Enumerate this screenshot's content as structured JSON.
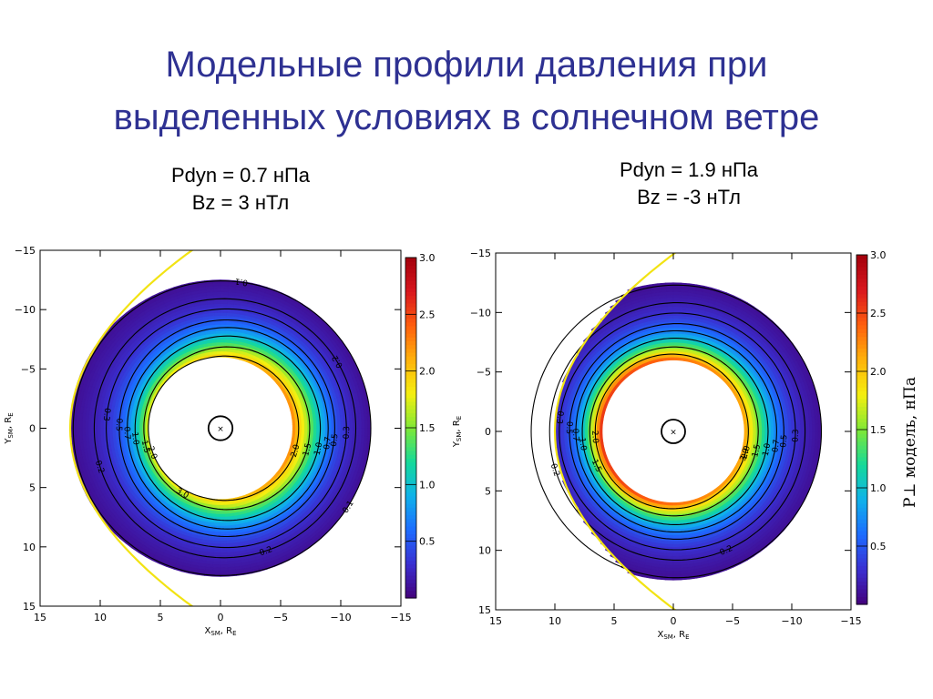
{
  "slide": {
    "title_line1": "Модельные профили давления при",
    "title_line2": "выделенных условиях в солнечном ветре"
  },
  "panels": [
    {
      "cond_line1": "Pdyn = 0.7 нПа",
      "cond_line2": "Bz = 3 нТл"
    },
    {
      "cond_line1": "Pdyn = 1.9 нПа",
      "cond_line2": "Bz = -3 нТл"
    }
  ],
  "colorbar_label": "P⊥ модель, нПа",
  "colors": {
    "title": "#2e3192",
    "earth_circle": "#000000",
    "magnetopause": "#f2e313",
    "colormap": [
      "#43007a",
      "#3a2fd0",
      "#1d6bff",
      "#0fb2ea",
      "#14d99a",
      "#7fe836",
      "#f4ef10",
      "#ffb30a",
      "#ff5f0d",
      "#d9171e",
      "#a3000c"
    ]
  },
  "chart_data": [
    {
      "type": "heatmap",
      "pdyn_npa": 0.7,
      "bz_nt": 3,
      "xlabel": "X_SM, R_E",
      "ylabel": "Y_SM, R_E",
      "xlim": [
        15,
        -15
      ],
      "ylim": [
        -15,
        15
      ],
      "xticks": [
        15,
        10,
        5,
        0,
        -5,
        -10,
        -15
      ],
      "yticks": [
        -15,
        -10,
        -5,
        0,
        5,
        10,
        15
      ],
      "colorbar": {
        "range": [
          0,
          3.0
        ],
        "ticks": [
          0.5,
          1.0,
          1.5,
          2.0,
          2.5,
          3.0
        ]
      },
      "inner_boundary_re": 6.0,
      "outer_boundary_re": 12.5,
      "magnetopause_subsolar_re": 12.5,
      "pressure_profile": {
        "r": [
          6.0,
          6.5,
          7.0,
          7.5,
          8.0,
          8.5,
          9.0,
          9.5,
          10.0,
          11.0,
          12.0,
          12.5
        ],
        "p_day": [
          1.8,
          1.4,
          1.05,
          0.8,
          0.6,
          0.48,
          0.38,
          0.3,
          0.24,
          0.16,
          0.11,
          0.09
        ],
        "p_night": [
          2.3,
          2.0,
          1.75,
          1.45,
          1.15,
          0.9,
          0.68,
          0.5,
          0.37,
          0.22,
          0.14,
          0.1
        ]
      },
      "contours": [
        {
          "level": "0.1"
        },
        {
          "level": "0.2"
        },
        {
          "level": "0.3"
        },
        {
          "level": "0.5"
        },
        {
          "level": "0.7"
        },
        {
          "level": "1.0"
        },
        {
          "level": "1.5"
        },
        {
          "level": "2.0"
        }
      ],
      "contour_label_angles": [
        {
          "level": "0.1",
          "angles": [
            148,
            262
          ]
        },
        {
          "level": "0.2",
          "angles": [
            210,
            110,
            18
          ]
        },
        {
          "level": "0.3",
          "angles": [
            178,
            353
          ]
        },
        {
          "level": "0.5",
          "angles": [
            174,
            358
          ]
        },
        {
          "level": "0.7",
          "angles": [
            172,
            3
          ]
        },
        {
          "level": "1.0",
          "angles": [
            168,
            7
          ]
        },
        {
          "level": "1.5",
          "angles": [
            166,
            14
          ]
        },
        {
          "level": "2.0",
          "angles": [
            163,
            20
          ]
        },
        {
          "level": "3.0",
          "angles": [
            60
          ]
        }
      ]
    },
    {
      "type": "heatmap",
      "pdyn_npa": 1.9,
      "bz_nt": -3,
      "xlabel": "X_SM, R_E",
      "ylabel": "Y_SM, R_E",
      "xlim": [
        15,
        -15
      ],
      "ylim": [
        -15,
        15
      ],
      "xticks": [
        15,
        10,
        5,
        0,
        -5,
        -10,
        -15
      ],
      "yticks": [
        -15,
        -10,
        -5,
        0,
        5,
        10,
        15
      ],
      "colorbar": {
        "range": [
          0,
          3.0
        ],
        "ticks": [
          0.5,
          1.0,
          1.5,
          2.0,
          2.5,
          3.0
        ]
      },
      "inner_boundary_re": 6.0,
      "outer_boundary_re": 12.5,
      "magnetopause_subsolar_re": 10.0,
      "pressure_profile": {
        "r": [
          6.0,
          6.5,
          7.0,
          7.5,
          8.0,
          8.5,
          9.0,
          9.5,
          10.0,
          11.0,
          12.0,
          12.5
        ],
        "p_day": [
          2.7,
          2.1,
          1.55,
          1.12,
          0.8,
          0.58,
          0.43,
          0.32,
          0.24,
          0.15,
          0.1,
          0.08
        ],
        "p_night": [
          2.2,
          1.9,
          1.6,
          1.3,
          1.0,
          0.78,
          0.6,
          0.45,
          0.34,
          0.21,
          0.13,
          0.1
        ]
      },
      "contours": [
        {
          "level": "0.1"
        },
        {
          "level": "0.2"
        },
        {
          "level": "0.3"
        },
        {
          "level": "0.5"
        },
        {
          "level": "0.7"
        },
        {
          "level": "1.0"
        },
        {
          "level": "1.5"
        },
        {
          "level": "2.0"
        }
      ],
      "contour_label_angles": [
        {
          "level": "0.2",
          "angles": [
            114,
            18
          ]
        },
        {
          "level": "0.3",
          "angles": [
            178,
            353
          ]
        },
        {
          "level": "0.5",
          "angles": [
            175,
            358
          ]
        },
        {
          "level": "0.7",
          "angles": [
            172,
            2
          ]
        },
        {
          "level": "1.0",
          "angles": [
            169,
            8
          ]
        },
        {
          "level": "1.5",
          "angles": [
            167,
            24
          ]
        },
        {
          "level": "2.0",
          "angles": [
            164,
            4
          ]
        },
        {
          "level": "3.0",
          "angles": [
            162
          ]
        }
      ]
    }
  ]
}
